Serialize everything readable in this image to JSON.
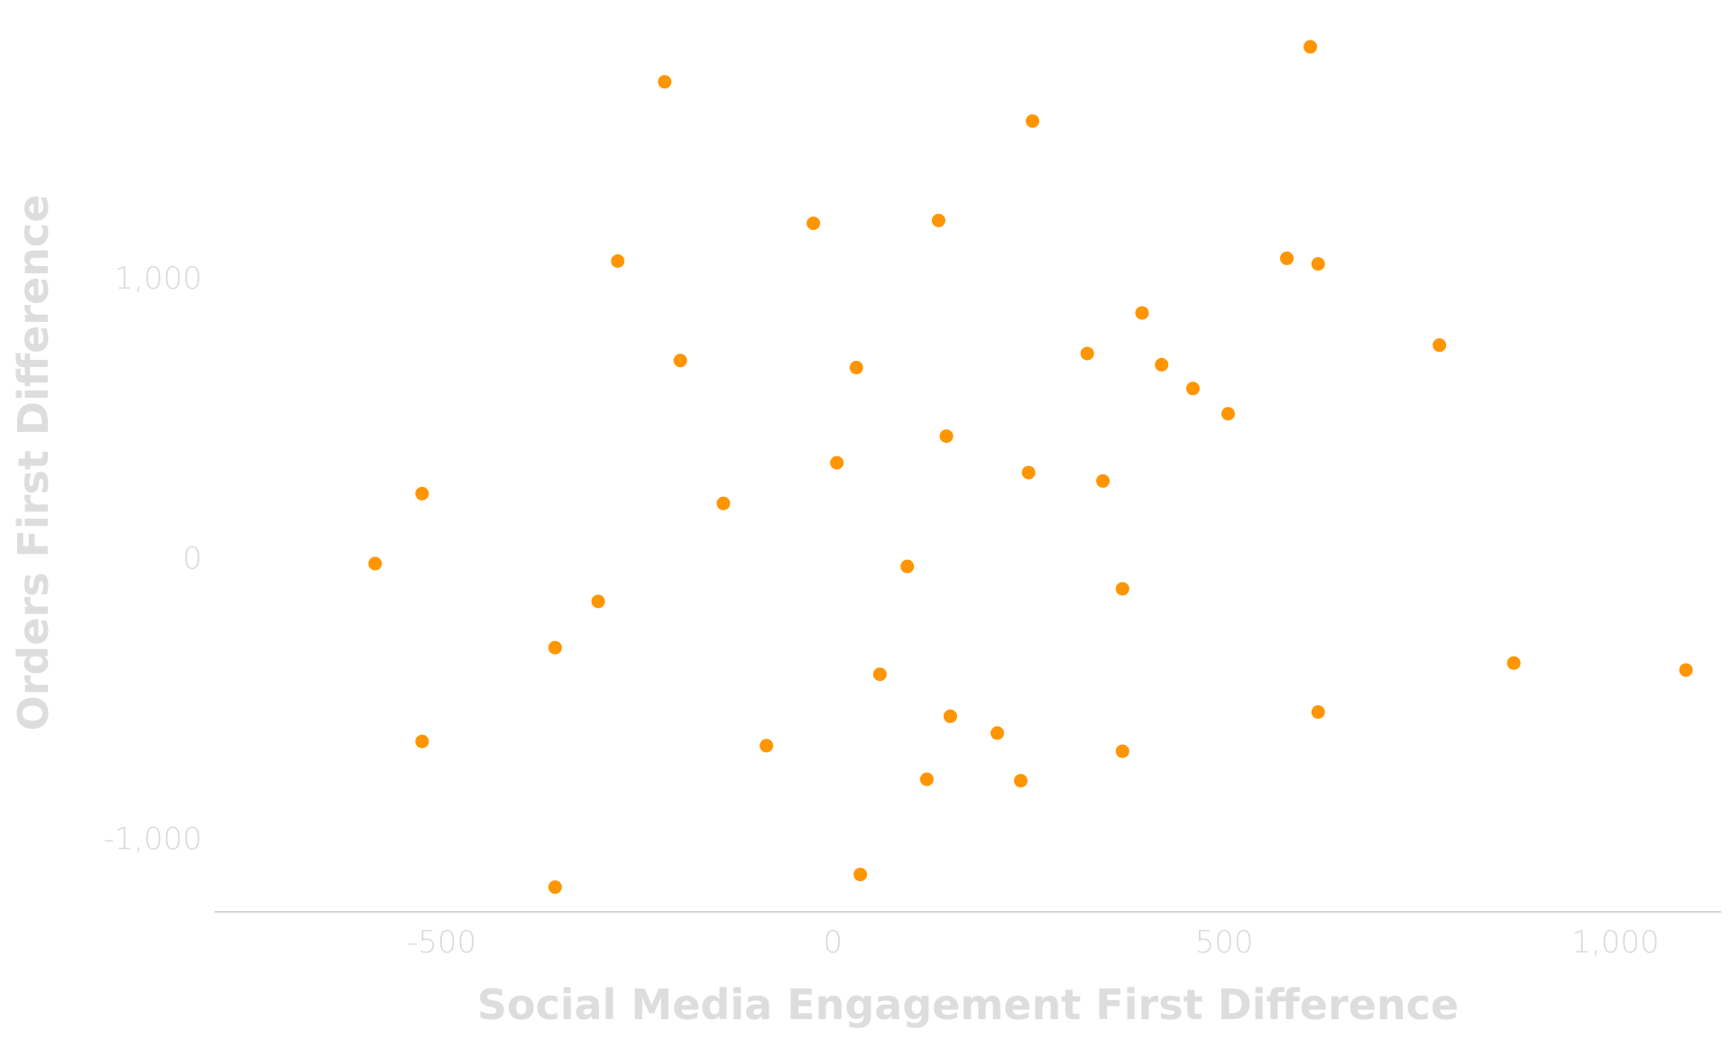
{
  "chart_data": {
    "type": "scatter",
    "title": "",
    "xlabel": "Social Media Engagement First Difference",
    "ylabel": "Orders First Difference",
    "xlim": [
      -790,
      1135
    ],
    "ylim": [
      -1260,
      1960
    ],
    "x_ticks": [
      -500,
      0,
      500,
      1000
    ],
    "x_tick_labels": [
      "-500",
      "0",
      "500",
      "1,000"
    ],
    "y_ticks": [
      -1000,
      0,
      1000
    ],
    "y_tick_labels": [
      "-1,000",
      "0",
      "1,000"
    ],
    "grid": false,
    "legend": "none",
    "point_color": "#ff9500",
    "series": [
      {
        "name": "",
        "points": [
          [
            610,
            1825
          ],
          [
            -215,
            1700
          ],
          [
            255,
            1560
          ],
          [
            -25,
            1195
          ],
          [
            135,
            1205
          ],
          [
            -275,
            1060
          ],
          [
            580,
            1070
          ],
          [
            620,
            1050
          ],
          [
            395,
            875
          ],
          [
            775,
            760
          ],
          [
            -195,
            705
          ],
          [
            30,
            680
          ],
          [
            325,
            730
          ],
          [
            420,
            690
          ],
          [
            460,
            605
          ],
          [
            505,
            515
          ],
          [
            145,
            435
          ],
          [
            5,
            340
          ],
          [
            250,
            305
          ],
          [
            345,
            275
          ],
          [
            -525,
            230
          ],
          [
            -140,
            195
          ],
          [
            -585,
            -20
          ],
          [
            95,
            -30
          ],
          [
            370,
            -110
          ],
          [
            -300,
            -155
          ],
          [
            -355,
            -320
          ],
          [
            60,
            -415
          ],
          [
            870,
            -375
          ],
          [
            1090,
            -400
          ],
          [
            150,
            -565
          ],
          [
            620,
            -550
          ],
          [
            210,
            -625
          ],
          [
            -525,
            -655
          ],
          [
            -85,
            -670
          ],
          [
            370,
            -690
          ],
          [
            120,
            -790
          ],
          [
            240,
            -795
          ],
          [
            35,
            -1130
          ],
          [
            -355,
            -1175
          ]
        ]
      }
    ]
  }
}
